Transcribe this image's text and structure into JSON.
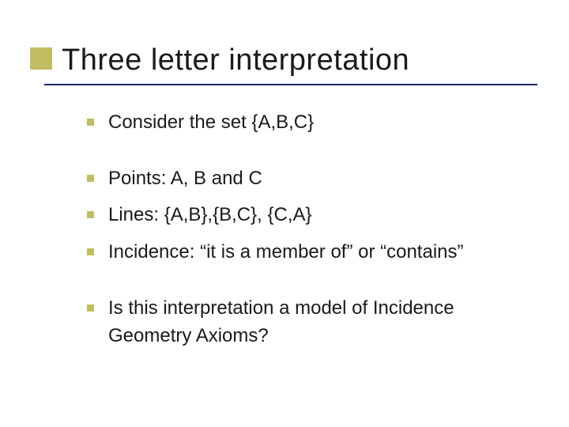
{
  "slide": {
    "title": "Three letter interpretation",
    "accent_color": "#c0be60",
    "underline_color": "#1e2a6a",
    "text_color": "#1a1a1a",
    "background_color": "#ffffff",
    "title_fontsize": 38,
    "body_fontsize": 24,
    "bullet_size": 9,
    "groups": [
      {
        "items": [
          "Consider the set {A,B,C}"
        ]
      },
      {
        "items": [
          "Points: A, B and C",
          "Lines: {A,B},{B,C}, {C,A}",
          "Incidence: “it is a member of” or “contains”"
        ]
      },
      {
        "items": [
          "Is this interpretation a model of Incidence Geometry Axioms?"
        ]
      }
    ]
  }
}
